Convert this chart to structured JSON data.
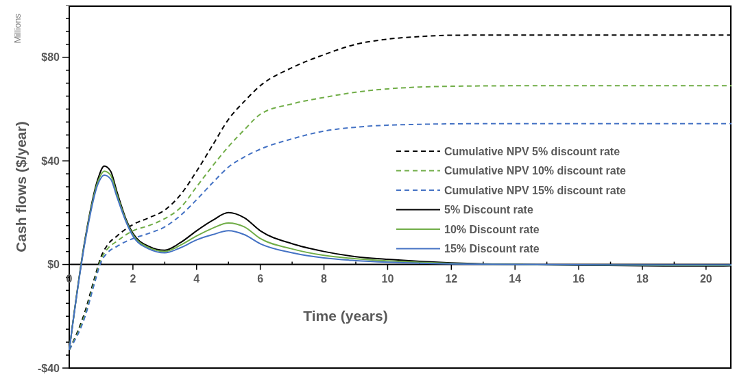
{
  "chart_data": {
    "type": "line",
    "xlabel": "Time (years)",
    "ylabel": "Cash flows ($/year)",
    "annotations": [
      "Millions"
    ],
    "xlim": [
      0,
      20.8
    ],
    "xticks": [
      0,
      {
        "value": 1,
        "label": null
      },
      2,
      {
        "value": 3,
        "label": null
      },
      4,
      {
        "value": 5,
        "label": null
      },
      6,
      {
        "value": 7,
        "label": null
      },
      8,
      {
        "value": 9,
        "label": null
      },
      10,
      {
        "value": 11,
        "label": null
      },
      12,
      {
        "value": 13,
        "label": null
      },
      14,
      {
        "value": 15,
        "label": null
      },
      16,
      {
        "value": 17,
        "label": null
      },
      18,
      {
        "value": 19,
        "label": null
      },
      20
    ],
    "ylim": [
      -40,
      100
    ],
    "yticks": [
      {
        "value": -40,
        "label": "-$40"
      },
      {
        "value": -35,
        "label": null
      },
      {
        "value": -30,
        "label": null
      },
      {
        "value": -25,
        "label": null
      },
      {
        "value": -20,
        "label": null
      },
      {
        "value": -15,
        "label": null
      },
      {
        "value": -10,
        "label": null
      },
      {
        "value": -5,
        "label": null
      },
      {
        "value": 0,
        "label": "$0"
      },
      {
        "value": 5,
        "label": null
      },
      {
        "value": 10,
        "label": null
      },
      {
        "value": 15,
        "label": null
      },
      {
        "value": 20,
        "label": null
      },
      {
        "value": 25,
        "label": null
      },
      {
        "value": 30,
        "label": null
      },
      {
        "value": 35,
        "label": null
      },
      {
        "value": 40,
        "label": "$40"
      },
      {
        "value": 45,
        "label": null
      },
      {
        "value": 50,
        "label": null
      },
      {
        "value": 55,
        "label": null
      },
      {
        "value": 60,
        "label": null
      },
      {
        "value": 65,
        "label": null
      },
      {
        "value": 70,
        "label": null
      },
      {
        "value": 75,
        "label": null
      },
      {
        "value": 80,
        "label": "$80"
      },
      {
        "value": 85,
        "label": null
      },
      {
        "value": 90,
        "label": null
      },
      {
        "value": 95,
        "label": null
      },
      {
        "value": 100,
        "label": null
      }
    ],
    "grid": false,
    "legend": "right",
    "marker": "none",
    "series": [
      {
        "name": "Cumulative NPV 5% discount rate",
        "color": "#000000",
        "line_style": "dashed",
        "x": [
          0,
          0.5,
          0.8,
          1,
          1.2,
          1.5,
          2,
          2.5,
          3,
          3.5,
          4,
          4.5,
          5,
          5.5,
          6,
          7,
          8,
          9,
          10,
          11,
          12,
          14,
          16,
          18,
          20,
          20.8
        ],
        "values": [
          -33,
          -18,
          -5,
          3,
          7.5,
          11,
          15.4,
          18,
          21,
          27,
          36,
          46,
          56,
          63,
          69,
          76,
          81,
          85,
          87,
          88,
          88.5,
          88.6,
          88.6,
          88.6,
          88.6,
          88.6
        ]
      },
      {
        "name": "Cumulative NPV 10% discount rate",
        "color": "#70ad47",
        "line_style": "dashed",
        "x": [
          0,
          0.5,
          0.8,
          1,
          1.2,
          1.5,
          2,
          2.5,
          3,
          3.5,
          4,
          4.5,
          5,
          5.5,
          6,
          7,
          8,
          9,
          10,
          11,
          12,
          14,
          16,
          18,
          20,
          20.8
        ],
        "values": [
          -33,
          -19,
          -6,
          2,
          6,
          9,
          13,
          15,
          17.7,
          22,
          30,
          38,
          45.5,
          52,
          58,
          62,
          64.5,
          66.5,
          67.8,
          68.5,
          68.8,
          69,
          69,
          69,
          69,
          69
        ]
      },
      {
        "name": "Cumulative NPV 15% discount rate",
        "color": "#4472c4",
        "line_style": "dashed",
        "x": [
          0,
          0.5,
          0.8,
          1,
          1.2,
          1.5,
          2,
          2.5,
          3,
          3.5,
          4,
          4.5,
          5,
          5.5,
          6,
          7,
          8,
          9,
          10,
          11,
          12,
          14,
          16,
          18,
          20,
          20.8
        ],
        "values": [
          -33,
          -20,
          -7,
          1,
          4.5,
          7,
          10,
          12,
          14.5,
          19,
          25,
          31.5,
          37.6,
          41.5,
          44.5,
          48.5,
          51.5,
          53,
          53.8,
          54.1,
          54.3,
          54.4,
          54.4,
          54.4,
          54.4,
          54.4
        ]
      },
      {
        "name": "5% Discount rate",
        "color": "#000000",
        "line_style": "solid",
        "x": [
          0,
          0.5,
          0.9,
          1.1,
          1.3,
          1.5,
          1.8,
          2,
          2.5,
          3,
          3.5,
          4,
          4.5,
          5,
          5.5,
          6,
          7,
          8,
          9,
          10,
          11,
          12,
          13,
          14,
          16,
          18,
          20,
          20.8
        ],
        "values": [
          -33,
          10,
          33,
          38,
          36,
          28,
          17,
          12,
          7,
          5.5,
          8.5,
          13,
          17,
          20,
          18,
          13,
          8,
          5,
          3,
          2,
          1.2,
          0.6,
          0.2,
          0,
          -0.3,
          -0.5,
          -0.6,
          -0.5
        ]
      },
      {
        "name": "10% Discount rate",
        "color": "#70ad47",
        "line_style": "solid",
        "x": [
          0,
          0.5,
          0.9,
          1.1,
          1.3,
          1.5,
          1.8,
          2,
          2.5,
          3,
          3.5,
          4,
          4.5,
          5,
          5.5,
          6,
          7,
          8,
          9,
          10,
          11,
          12,
          13,
          14,
          16,
          18,
          20,
          20.8
        ],
        "values": [
          -33,
          9.5,
          32,
          36,
          34.5,
          27,
          16.5,
          11.5,
          6.5,
          5,
          7.5,
          11,
          14,
          16,
          14.5,
          10,
          6,
          3.5,
          2.2,
          1.4,
          0.8,
          0.4,
          0.1,
          0,
          -0.2,
          -0.3,
          -0.4,
          -0.3
        ]
      },
      {
        "name": "15% Discount rate",
        "color": "#4472c4",
        "line_style": "solid",
        "x": [
          0,
          0.5,
          0.9,
          1.1,
          1.3,
          1.5,
          1.8,
          2,
          2.5,
          3,
          3.5,
          4,
          4.5,
          5,
          5.5,
          6,
          7,
          8,
          9,
          10,
          11,
          12,
          13,
          14,
          16,
          18,
          20,
          20.8
        ],
        "values": [
          -33,
          9,
          31,
          34.5,
          33,
          26,
          16,
          11,
          6,
          4.5,
          6.5,
          9.5,
          11.5,
          13,
          11.5,
          8,
          4.5,
          2.5,
          1.5,
          0.9,
          0.5,
          0.2,
          0.1,
          0,
          -0.1,
          -0.2,
          -0.2,
          -0.2
        ]
      }
    ]
  }
}
